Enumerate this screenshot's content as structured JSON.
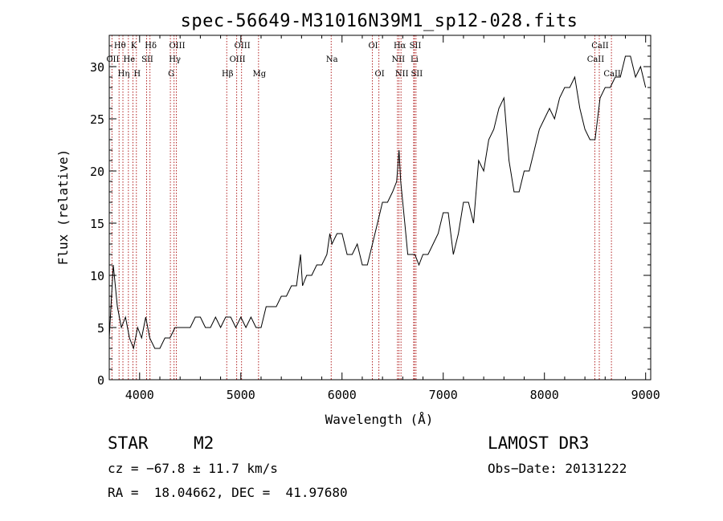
{
  "chart_data": {
    "type": "line",
    "title": "spec-56649-M31016N39M1_sp12-028.fits",
    "xlabel": "Wavelength (Å)",
    "ylabel": "Flux (relative)",
    "xlim": [
      3700,
      9050
    ],
    "ylim": [
      0,
      33
    ],
    "xticks": [
      4000,
      5000,
      6000,
      7000,
      8000,
      9000
    ],
    "yticks": [
      0,
      5,
      10,
      15,
      20,
      25,
      30
    ],
    "series": [
      {
        "name": "flux",
        "x": [
          3700,
          3740,
          3780,
          3820,
          3860,
          3900,
          3940,
          3980,
          4020,
          4060,
          4100,
          4150,
          4200,
          4250,
          4300,
          4350,
          4400,
          4450,
          4500,
          4550,
          4600,
          4650,
          4700,
          4750,
          4800,
          4850,
          4900,
          4950,
          5000,
          5050,
          5100,
          5150,
          5200,
          5250,
          5300,
          5350,
          5400,
          5450,
          5500,
          5550,
          5590,
          5610,
          5650,
          5700,
          5750,
          5800,
          5850,
          5880,
          5900,
          5950,
          6000,
          6050,
          6100,
          6150,
          6200,
          6250,
          6300,
          6350,
          6400,
          6450,
          6500,
          6540,
          6563,
          6580,
          6620,
          6650,
          6680,
          6720,
          6760,
          6800,
          6850,
          6900,
          6950,
          7000,
          7050,
          7100,
          7150,
          7200,
          7250,
          7300,
          7350,
          7400,
          7450,
          7500,
          7550,
          7600,
          7650,
          7700,
          7750,
          7800,
          7850,
          7900,
          7950,
          8000,
          8050,
          8100,
          8150,
          8200,
          8250,
          8300,
          8350,
          8400,
          8450,
          8500,
          8550,
          8600,
          8650,
          8700,
          8750,
          8800,
          8850,
          8900,
          8950,
          9000
        ],
        "y": [
          4,
          11,
          7,
          5,
          6,
          4,
          3,
          5,
          4,
          6,
          4,
          3,
          3,
          4,
          4,
          5,
          5,
          5,
          5,
          6,
          6,
          5,
          5,
          6,
          5,
          6,
          6,
          5,
          6,
          5,
          6,
          5,
          5,
          7,
          7,
          7,
          8,
          8,
          9,
          9,
          12,
          9,
          10,
          10,
          11,
          11,
          12,
          14,
          13,
          14,
          14,
          12,
          12,
          13,
          11,
          11,
          13,
          15,
          17,
          17,
          18,
          19,
          22,
          19,
          15,
          12,
          12,
          12,
          11,
          12,
          12,
          13,
          14,
          16,
          16,
          12,
          14,
          17,
          17,
          15,
          21,
          20,
          23,
          24,
          26,
          27,
          21,
          18,
          18,
          20,
          20,
          22,
          24,
          25,
          26,
          25,
          27,
          28,
          28,
          29,
          26,
          24,
          23,
          23,
          27,
          28,
          28,
          29,
          29,
          31,
          31,
          29,
          30,
          28
        ]
      }
    ],
    "lines": [
      {
        "label": "Hθ",
        "x": 3797,
        "row": 1
      },
      {
        "label": "OII",
        "x": 3727,
        "row": 2
      },
      {
        "label": "Hη",
        "x": 3835,
        "row": 3
      },
      {
        "label": "He",
        "x": 3889,
        "row": 2
      },
      {
        "label": "K",
        "x": 3934,
        "row": 1
      },
      {
        "label": "H",
        "x": 3968,
        "row": 3
      },
      {
        "label": "SII",
        "x": 4069,
        "row": 2
      },
      {
        "label": "Hδ",
        "x": 4102,
        "row": 1
      },
      {
        "label": "OIII",
        "x": 4363,
        "row": 1
      },
      {
        "label": "Hγ",
        "x": 4340,
        "row": 2
      },
      {
        "label": "G",
        "x": 4304,
        "row": 3
      },
      {
        "label": "Hβ",
        "x": 4861,
        "row": 3
      },
      {
        "label": "OIII",
        "x": 5007,
        "row": 1
      },
      {
        "label": "OIII",
        "x": 4959,
        "row": 2
      },
      {
        "label": "Mg",
        "x": 5175,
        "row": 3
      },
      {
        "label": "Na",
        "x": 5893,
        "row": 2
      },
      {
        "label": "OI",
        "x": 6300,
        "row": 1
      },
      {
        "label": "OI",
        "x": 6364,
        "row": 3
      },
      {
        "label": "Hα",
        "x": 6563,
        "row": 1
      },
      {
        "label": "SII",
        "x": 6716,
        "row": 1
      },
      {
        "label": "NII",
        "x": 6548,
        "row": 2
      },
      {
        "label": "Li",
        "x": 6708,
        "row": 2
      },
      {
        "label": "NII",
        "x": 6583,
        "row": 3
      },
      {
        "label": "SII",
        "x": 6731,
        "row": 3
      },
      {
        "label": "CaII",
        "x": 8542,
        "row": 1
      },
      {
        "label": "CaII",
        "x": 8498,
        "row": 2
      },
      {
        "label": "CaII",
        "x": 8662,
        "row": 3
      }
    ],
    "line_color": "#b22222",
    "grid": false
  },
  "info": {
    "class_label": "STAR",
    "subclass": "M2",
    "survey": "LAMOST DR3",
    "cz": "cz = −67.8 ± 11.7 km/s",
    "obs_date": "Obs−Date: 20131222",
    "coords": "RA =  18.04662, DEC =  41.97680"
  }
}
